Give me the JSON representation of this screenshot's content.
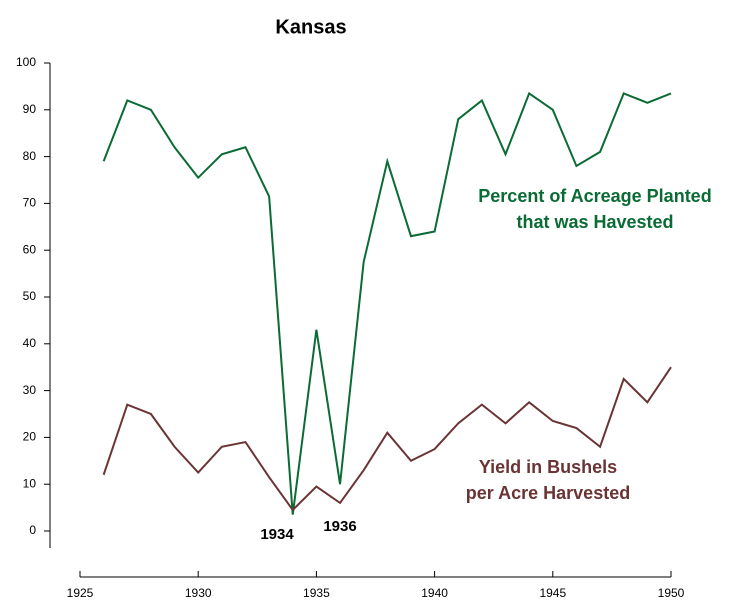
{
  "chart_data": {
    "type": "line",
    "title": "Kansas",
    "x": [
      1926,
      1927,
      1928,
      1929,
      1930,
      1931,
      1932,
      1933,
      1934,
      1935,
      1936,
      1937,
      1938,
      1939,
      1940,
      1941,
      1942,
      1943,
      1944,
      1945,
      1946,
      1947,
      1948,
      1949,
      1950
    ],
    "series": [
      {
        "label_lines": [
          "Percent of Acreage Planted",
          "that was Havested"
        ],
        "color": "#0b6b35",
        "values": [
          79,
          92,
          90,
          82,
          75.5,
          80.5,
          82,
          71.5,
          3.5,
          43,
          10,
          57.5,
          79,
          63,
          64,
          88,
          92,
          80.5,
          93.5,
          90,
          78,
          81,
          93.5,
          91.5,
          93.5
        ]
      },
      {
        "label_lines": [
          "Yield in Bushels",
          "per Acre Harvested"
        ],
        "color": "#6b3434",
        "values": [
          12,
          27,
          25,
          18,
          12.5,
          18,
          19,
          11.5,
          4.5,
          9.5,
          6,
          13,
          21,
          15,
          17.5,
          23,
          27,
          23,
          27.5,
          23.5,
          22,
          18,
          32.5,
          27.5,
          35
        ]
      }
    ],
    "annotations": [
      "1934",
      "1936"
    ],
    "xlim": [
      1925,
      1950
    ],
    "xticks": [
      1925,
      1930,
      1935,
      1940,
      1945,
      1950
    ],
    "ylim": [
      0,
      100
    ],
    "yticks": [
      0,
      10,
      20,
      30,
      40,
      50,
      60,
      70,
      80,
      90,
      100
    ]
  }
}
